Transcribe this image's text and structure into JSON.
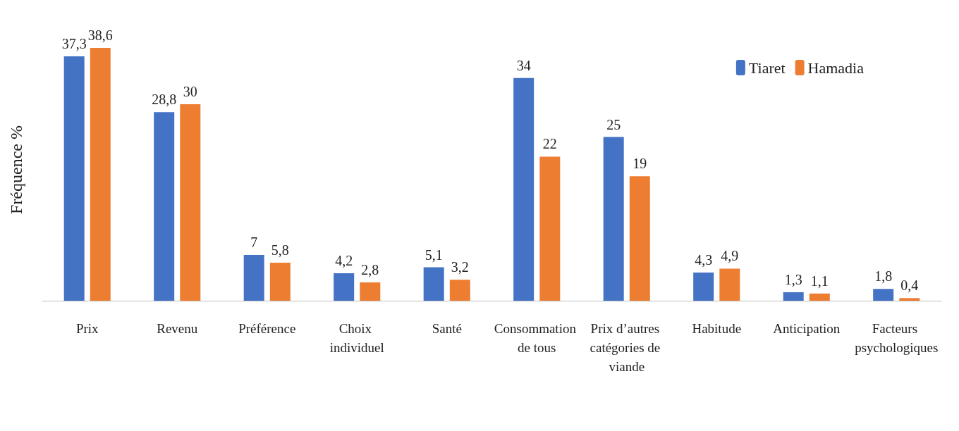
{
  "chart_data": {
    "type": "bar",
    "ylabel": "Fréquence %",
    "categories": [
      "Prix",
      "Revenu",
      "Préférence",
      "Choix individuel",
      "Santé",
      "Consommation de tous",
      "Prix d’autres catégories de viande",
      "Habitude",
      "Anticipation",
      "Facteurs psychologiques"
    ],
    "series": [
      {
        "name": "Tiaret",
        "color": "#4472c4",
        "values": [
          37.3,
          28.8,
          7,
          4.2,
          5.1,
          34,
          25,
          4.3,
          1.3,
          1.8
        ],
        "value_labels": [
          "37,3",
          "28,8",
          "7",
          "4,2",
          "5,1",
          "34",
          "25",
          "4,3",
          "1,3",
          "1,8"
        ]
      },
      {
        "name": "Hamadia",
        "color": "#ed7d31",
        "values": [
          38.6,
          30,
          5.8,
          2.8,
          3.2,
          22,
          19,
          4.9,
          1.1,
          0.4
        ],
        "value_labels": [
          "38,6",
          "30",
          "5,8",
          "2,8",
          "3,2",
          "22",
          "19",
          "4,9",
          "1,1",
          "0,4"
        ]
      }
    ],
    "legend": "top right",
    "grid": false
  }
}
